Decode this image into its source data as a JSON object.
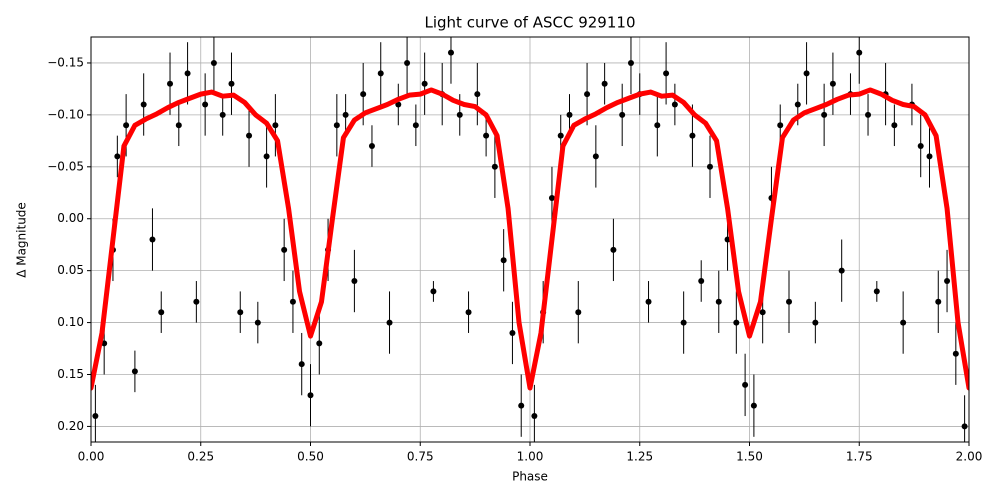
{
  "chart_data": {
    "type": "scatter",
    "title": "Light curve of ASCC 929110",
    "x_label": "Phase",
    "y_label": "Δ Magnitude",
    "xlim": [
      0,
      2
    ],
    "ylim": [
      0.215,
      -0.175
    ],
    "xticks": [
      {
        "value": 0,
        "label": "0.00"
      },
      {
        "value": 0.25,
        "label": "0.25"
      },
      {
        "value": 0.5,
        "label": "0.50"
      },
      {
        "value": 0.75,
        "label": "0.75"
      },
      {
        "value": 1,
        "label": "1.00"
      },
      {
        "value": 1.25,
        "label": "1.25"
      },
      {
        "value": 1.5,
        "label": "1.50"
      },
      {
        "value": 1.75,
        "label": "1.75"
      },
      {
        "value": 2,
        "label": "2.00"
      }
    ],
    "yticks": [
      {
        "value": -0.15,
        "label": "−0.15"
      },
      {
        "value": -0.1,
        "label": "−0.10"
      },
      {
        "value": -0.05,
        "label": "−0.05"
      },
      {
        "value": 0,
        "label": "0.00"
      },
      {
        "value": 0.05,
        "label": "0.05"
      },
      {
        "value": 0.1,
        "label": "0.10"
      },
      {
        "value": 0.15,
        "label": "0.15"
      },
      {
        "value": 0.2,
        "label": "0.20"
      }
    ],
    "grid": true,
    "series": [
      {
        "type": "errorbar",
        "color": "#000000",
        "x": [
          0.01,
          0.03,
          0.05,
          0.06,
          0.08,
          0.1,
          0.12,
          0.14,
          0.16,
          0.18,
          0.2,
          0.22,
          0.24,
          0.26,
          0.28,
          0.3,
          0.32,
          0.34,
          0.36,
          0.38,
          0.4,
          0.42,
          0.44,
          0.46,
          0.48,
          0.5,
          0.52,
          0.54,
          0.56,
          0.58,
          0.6,
          0.62,
          0.64,
          0.66,
          0.68,
          0.7,
          0.72,
          0.74,
          0.76,
          0.78,
          0.8,
          0.82,
          0.84,
          0.86,
          0.88,
          0.9,
          0.92,
          0.94,
          0.96,
          0.98,
          1.01,
          1.03,
          1.05,
          1.07,
          1.09,
          1.11,
          1.13,
          1.15,
          1.17,
          1.19,
          1.21,
          1.23,
          1.25,
          1.27,
          1.29,
          1.31,
          1.33,
          1.35,
          1.37,
          1.39,
          1.41,
          1.43,
          1.45,
          1.47,
          1.49,
          1.51,
          1.53,
          1.55,
          1.57,
          1.59,
          1.61,
          1.63,
          1.65,
          1.67,
          1.69,
          1.71,
          1.73,
          1.75,
          1.77,
          1.79,
          1.81,
          1.83,
          1.85,
          1.87,
          1.89,
          1.91,
          1.93,
          1.95,
          1.97,
          1.99
        ],
        "values": [
          0.19,
          0.12,
          0.03,
          -0.06,
          -0.09,
          0.147,
          -0.11,
          0.02,
          0.09,
          -0.13,
          -0.09,
          -0.14,
          0.08,
          -0.11,
          -0.15,
          -0.1,
          -0.13,
          0.09,
          -0.08,
          0.1,
          -0.06,
          -0.09,
          0.03,
          0.08,
          0.14,
          0.17,
          0.12,
          0.03,
          -0.09,
          -0.1,
          0.06,
          -0.12,
          -0.07,
          -0.14,
          0.1,
          -0.11,
          -0.15,
          -0.09,
          -0.13,
          0.07,
          -0.12,
          -0.16,
          -0.1,
          0.09,
          -0.12,
          -0.08,
          -0.05,
          0.04,
          0.11,
          0.18,
          0.19,
          0.09,
          -0.02,
          -0.08,
          -0.1,
          0.09,
          -0.12,
          -0.06,
          -0.13,
          0.03,
          -0.1,
          -0.15,
          -0.12,
          0.08,
          -0.09,
          -0.14,
          -0.11,
          0.1,
          -0.08,
          0.06,
          -0.05,
          0.08,
          0.02,
          0.1,
          0.16,
          0.18,
          0.09,
          -0.02,
          -0.09,
          0.08,
          -0.11,
          -0.14,
          0.1,
          -0.1,
          -0.13,
          0.05,
          -0.12,
          -0.16,
          -0.1,
          0.07,
          -0.12,
          -0.09,
          0.1,
          -0.11,
          -0.07,
          -0.06,
          0.08,
          0.06,
          0.13,
          0.2
        ],
        "errors": [
          0.03,
          0.03,
          0.03,
          0.02,
          0.03,
          0.02,
          0.03,
          0.03,
          0.02,
          0.03,
          0.02,
          0.03,
          0.02,
          0.03,
          0.03,
          0.02,
          0.03,
          0.02,
          0.03,
          0.02,
          0.03,
          0.03,
          0.03,
          0.03,
          0.03,
          0.03,
          0.03,
          0.03,
          0.03,
          0.02,
          0.03,
          0.03,
          0.02,
          0.03,
          0.03,
          0.02,
          0.03,
          0.02,
          0.03,
          0.01,
          0.03,
          0.03,
          0.02,
          0.02,
          0.03,
          0.02,
          0.03,
          0.03,
          0.03,
          0.03,
          0.03,
          0.03,
          0.03,
          0.02,
          0.02,
          0.03,
          0.03,
          0.03,
          0.02,
          0.03,
          0.03,
          0.03,
          0.02,
          0.02,
          0.03,
          0.03,
          0.02,
          0.03,
          0.03,
          0.02,
          0.03,
          0.03,
          0.03,
          0.03,
          0.03,
          0.03,
          0.03,
          0.03,
          0.02,
          0.03,
          0.02,
          0.03,
          0.02,
          0.03,
          0.03,
          0.03,
          0.02,
          0.03,
          0.02,
          0.01,
          0.03,
          0.02,
          0.03,
          0.02,
          0.03,
          0.03,
          0.03,
          0.03,
          0.03,
          0.03
        ]
      },
      {
        "type": "line",
        "color": "#ff0000",
        "x": [
          0,
          0.025,
          0.05,
          0.075,
          0.1,
          0.125,
          0.15,
          0.175,
          0.2,
          0.225,
          0.25,
          0.275,
          0.3,
          0.325,
          0.35,
          0.375,
          0.4,
          0.425,
          0.45,
          0.475,
          0.5,
          0.525,
          0.55,
          0.575,
          0.6,
          0.625,
          0.65,
          0.675,
          0.7,
          0.725,
          0.75,
          0.775,
          0.8,
          0.825,
          0.85,
          0.875,
          0.9,
          0.925,
          0.95,
          0.975,
          1,
          1.025,
          1.05,
          1.075,
          1.1,
          1.125,
          1.15,
          1.175,
          1.2,
          1.225,
          1.25,
          1.275,
          1.3,
          1.325,
          1.35,
          1.375,
          1.4,
          1.425,
          1.45,
          1.475,
          1.5,
          1.525,
          1.55,
          1.575,
          1.6,
          1.625,
          1.65,
          1.675,
          1.7,
          1.725,
          1.75,
          1.775,
          1.8,
          1.825,
          1.85,
          1.875,
          1.9,
          1.925,
          1.95,
          1.975,
          2
        ],
        "values": [
          0.163,
          0.11,
          0.02,
          -0.07,
          -0.09,
          -0.096,
          -0.101,
          -0.107,
          -0.112,
          -0.116,
          -0.12,
          -0.122,
          -0.118,
          -0.119,
          -0.112,
          -0.1,
          -0.092,
          -0.075,
          -0.01,
          0.07,
          0.113,
          0.08,
          0,
          -0.078,
          -0.095,
          -0.102,
          -0.106,
          -0.11,
          -0.115,
          -0.119,
          -0.12,
          -0.124,
          -0.12,
          -0.114,
          -0.11,
          -0.108,
          -0.1,
          -0.08,
          -0.01,
          0.1,
          0.163,
          0.11,
          0.02,
          -0.07,
          -0.09,
          -0.096,
          -0.101,
          -0.107,
          -0.112,
          -0.116,
          -0.12,
          -0.122,
          -0.118,
          -0.119,
          -0.112,
          -0.1,
          -0.092,
          -0.075,
          -0.01,
          0.07,
          0.113,
          0.08,
          0,
          -0.078,
          -0.095,
          -0.102,
          -0.106,
          -0.11,
          -0.115,
          -0.119,
          -0.12,
          -0.124,
          -0.12,
          -0.114,
          -0.11,
          -0.108,
          -0.1,
          -0.08,
          -0.01,
          0.1,
          0.163
        ]
      }
    ]
  }
}
